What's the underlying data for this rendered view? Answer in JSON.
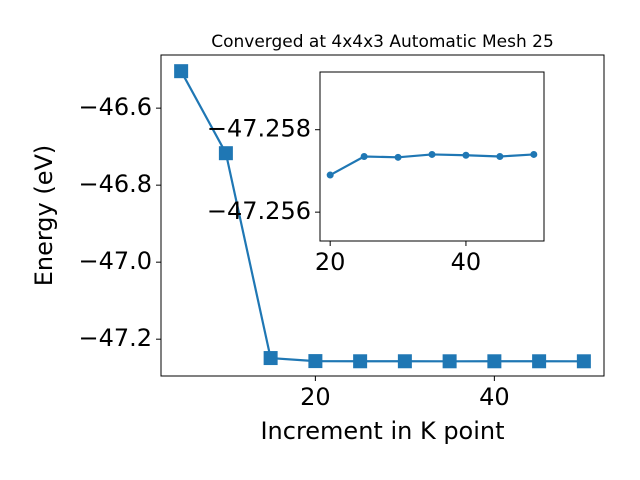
{
  "chart_data": [
    {
      "type": "line",
      "title": "Converged at 4x4x3 Automatic Mesh 25",
      "x_label": "Increment in K point",
      "y_label": "Energy (eV)",
      "x": [
        5,
        10,
        15,
        20,
        25,
        30,
        35,
        40,
        45,
        50
      ],
      "series": [
        {
          "color": "#1f77b4",
          "marker": "square",
          "values": [
            -46.504,
            -46.717,
            -47.249,
            -47.2569,
            -47.25735,
            -47.25733,
            -47.2574,
            -47.25738,
            -47.25735,
            -47.2574
          ]
        }
      ],
      "xlim": [
        2.75,
        52.25
      ],
      "xticks": [
        20,
        40
      ],
      "ylim": [
        -47.2956,
        -46.462
      ],
      "yticks": [
        {
          "value": -47.2,
          "label": "−47.2"
        },
        {
          "value": -47.0,
          "label": "−47.0"
        },
        {
          "value": -46.8,
          "label": "−46.8"
        },
        {
          "value": -46.6,
          "label": "−46.6"
        }
      ]
    },
    {
      "type": "line",
      "x": [
        20,
        25,
        30,
        35,
        40,
        45,
        50
      ],
      "series": [
        {
          "color": "#1f77b4",
          "marker": "circle",
          "values": [
            -47.2569,
            -47.25735,
            -47.25733,
            -47.2574,
            -47.25738,
            -47.25735,
            -47.2574
          ]
        }
      ],
      "xlim": [
        18.5,
        51.5
      ],
      "xticks": [
        20,
        40
      ],
      "ylim": [
        -47.2553,
        -47.2594
      ],
      "yticks": [
        {
          "value": -47.256,
          "label": "−47.256"
        },
        {
          "value": -47.258,
          "label": "−47.258"
        }
      ]
    }
  ]
}
